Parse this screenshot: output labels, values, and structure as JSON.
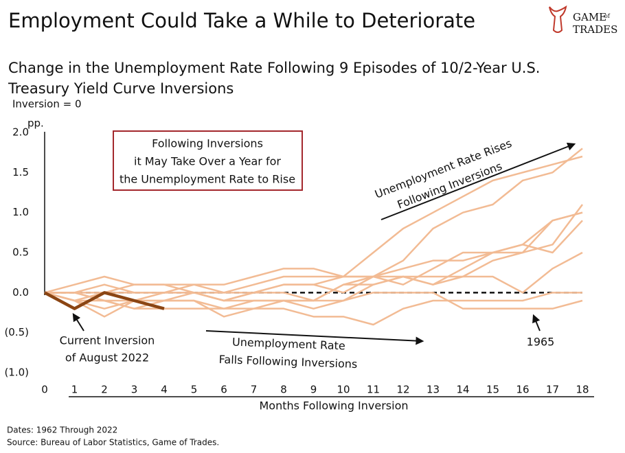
{
  "chart_data": {
    "type": "line",
    "title": "Employment Could Take a While to Deteriorate",
    "subtitle": [
      "Change in the Unemployment Rate Following 9 Episodes of 10/2-Year U.S.",
      "Treasury Yield Curve Inversions"
    ],
    "y_note": "Inversion = 0",
    "y_unit": "pp.",
    "xlabel": "Months Following Inversion",
    "logo": [
      "GAME",
      "of",
      "TRADES"
    ],
    "x": [
      0,
      1,
      2,
      3,
      4,
      5,
      6,
      7,
      8,
      9,
      10,
      11,
      12,
      13,
      14,
      15,
      16,
      17,
      18
    ],
    "xlim": [
      0,
      18
    ],
    "xticks": [
      0,
      1,
      2,
      3,
      4,
      5,
      6,
      7,
      8,
      9,
      10,
      11,
      12,
      13,
      14,
      15,
      16,
      17,
      18
    ],
    "ylim": [
      -1,
      2
    ],
    "yticks": [
      {
        "value": -1,
        "label": "(1.0)"
      },
      {
        "value": -0.5,
        "label": "(0.5)"
      },
      {
        "value": 0,
        "label": "0.0"
      },
      {
        "value": 0.5,
        "label": "0.5"
      },
      {
        "value": 1,
        "label": "1.0"
      },
      {
        "value": 1.5,
        "label": "1.5"
      },
      {
        "value": 2,
        "label": "2.0"
      }
    ],
    "zero_line": true,
    "series": [
      {
        "color": "#f2bb94",
        "values": [
          0,
          0.1,
          0.2,
          0.1,
          0.1,
          0.1,
          0.1,
          0.2,
          0.3,
          0.3,
          0.2,
          0.2,
          0.4,
          0.8,
          1.0,
          1.1,
          1.4,
          1.5,
          1.8
        ]
      },
      {
        "color": "#f2bb94",
        "values": [
          0,
          0,
          0.1,
          0,
          0,
          0.1,
          0,
          0.1,
          0.2,
          0.2,
          0.2,
          0.5,
          0.8,
          1.0,
          1.2,
          1.4,
          1.5,
          1.6,
          1.7
        ]
      },
      {
        "color": "#f2bb94",
        "values": [
          0,
          -0.1,
          0,
          0,
          0,
          0,
          -0.1,
          0,
          0.1,
          0.1,
          0,
          0.2,
          0.1,
          0.3,
          0.5,
          0.5,
          0.5,
          0.6,
          1.1
        ]
      },
      {
        "color": "#f2bb94",
        "values": [
          0,
          -0.1,
          -0.2,
          -0.1,
          0,
          0,
          -0.1,
          -0.1,
          -0.1,
          -0.1,
          0.1,
          0.2,
          0.3,
          0.4,
          0.4,
          0.5,
          0.6,
          0.9,
          1.0
        ]
      },
      {
        "color": "#f2bb94",
        "values": [
          0,
          0,
          -0.1,
          -0.1,
          -0.1,
          0,
          0,
          0,
          0.1,
          0.1,
          0.2,
          0.2,
          0.2,
          0.1,
          0.3,
          0.5,
          0.6,
          0.5,
          0.9
        ]
      },
      {
        "color": "#f2bb94",
        "values": [
          0,
          -0.1,
          -0.3,
          -0.1,
          -0.1,
          -0.1,
          -0.2,
          -0.1,
          -0.1,
          -0.2,
          -0.1,
          0.1,
          0.2,
          0.2,
          0.2,
          0.4,
          0.5,
          0.9,
          1.0
        ]
      },
      {
        "color": "#f2bb94",
        "values": [
          0,
          -0.1,
          -0.1,
          -0.2,
          -0.1,
          -0.1,
          -0.3,
          -0.2,
          -0.2,
          -0.3,
          -0.3,
          -0.4,
          -0.2,
          -0.1,
          -0.1,
          -0.1,
          -0.1,
          0,
          0
        ]
      },
      {
        "color": "#f2bb94",
        "values": [
          0,
          0,
          -0.1,
          -0.2,
          -0.2,
          -0.2,
          -0.2,
          -0.2,
          -0.1,
          -0.1,
          -0.1,
          0,
          0,
          0,
          -0.2,
          -0.2,
          -0.2,
          -0.2,
          -0.1
        ]
      },
      {
        "color": "#f2bb94",
        "values": [
          0,
          0,
          0,
          0.1,
          0.1,
          0,
          -0.1,
          0,
          0,
          -0.1,
          0.1,
          0.1,
          0.2,
          0.1,
          0.2,
          0.2,
          0,
          0.3,
          0.5
        ]
      },
      {
        "color": "#8b4513",
        "values": [
          0,
          -0.2,
          0,
          -0.1,
          -0.2,
          null,
          null,
          null,
          null,
          null,
          null,
          null,
          null,
          null,
          null,
          null,
          null,
          null,
          null
        ]
      }
    ],
    "annotations": [
      {
        "lines": [
          "Following Inversions",
          "it May Take Over a Year for",
          "the Unemployment Rate to Rise"
        ]
      },
      {
        "lines": [
          "Unemployment Rate Rises",
          "Following Inversions"
        ]
      },
      {
        "lines": [
          "Unemployment Rate",
          "Falls Following Inversions"
        ]
      },
      {
        "lines": [
          "Current Inversion",
          "of August 2022"
        ]
      },
      {
        "lines": [
          "1965"
        ]
      }
    ],
    "footnotes": [
      "Dates: 1962 Through 2022",
      "Source: Bureau of Labor Statistics, Game of Trades."
    ]
  }
}
